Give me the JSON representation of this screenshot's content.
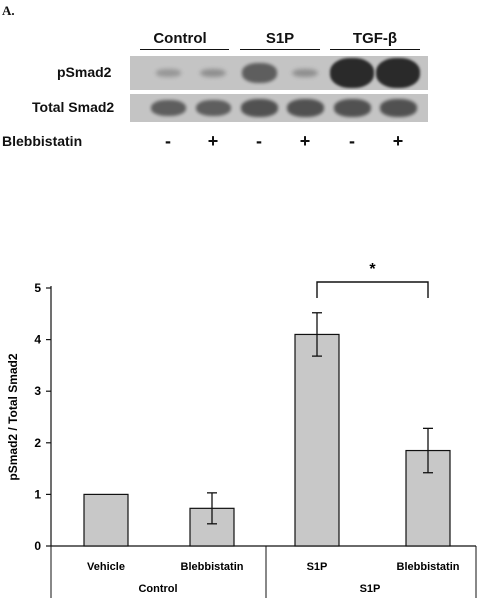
{
  "figure": {
    "panel_label": "A."
  },
  "blot": {
    "groups": [
      {
        "label": "Control",
        "center": 180,
        "line": [
          140,
          229
        ]
      },
      {
        "label": "S1P",
        "center": 280,
        "line": [
          240,
          320
        ]
      },
      {
        "label": "TGF-β",
        "center": 375,
        "line": [
          330,
          420
        ]
      }
    ],
    "rows": [
      {
        "label": "pSmad2",
        "top": 56,
        "height": 34,
        "intensities": [
          0.05,
          0.12,
          0.55,
          0.12,
          1.0,
          1.0
        ]
      },
      {
        "label": "Total Smad2",
        "top": 94,
        "height": 28,
        "intensities": [
          0.55,
          0.55,
          0.65,
          0.65,
          0.65,
          0.65
        ]
      }
    ],
    "treatment_label": "Blebbistatin",
    "treatment_signs": [
      "-",
      "+",
      "-",
      "+",
      "-",
      "+"
    ]
  },
  "chart_data": {
    "type": "bar",
    "categories": [
      "Vehicle",
      "Blebbistatin",
      "S1P",
      "Blebbistatin"
    ],
    "groups": [
      {
        "label": "Control",
        "categories": [
          "Vehicle",
          "Blebbistatin"
        ]
      },
      {
        "label": "S1P",
        "categories": [
          "S1P",
          "Blebbistatin"
        ]
      }
    ],
    "values": [
      1.0,
      0.73,
      4.1,
      1.85
    ],
    "errors": [
      0,
      0.3,
      0.42,
      0.43
    ],
    "ylabel": "pSmad2 / Total Smad2",
    "ylim": [
      0,
      5
    ],
    "yticks": [
      0,
      1,
      2,
      3,
      4,
      5
    ],
    "significance": {
      "between": [
        2,
        3
      ],
      "label": "*"
    },
    "bar_color": "#c8c8c8"
  }
}
